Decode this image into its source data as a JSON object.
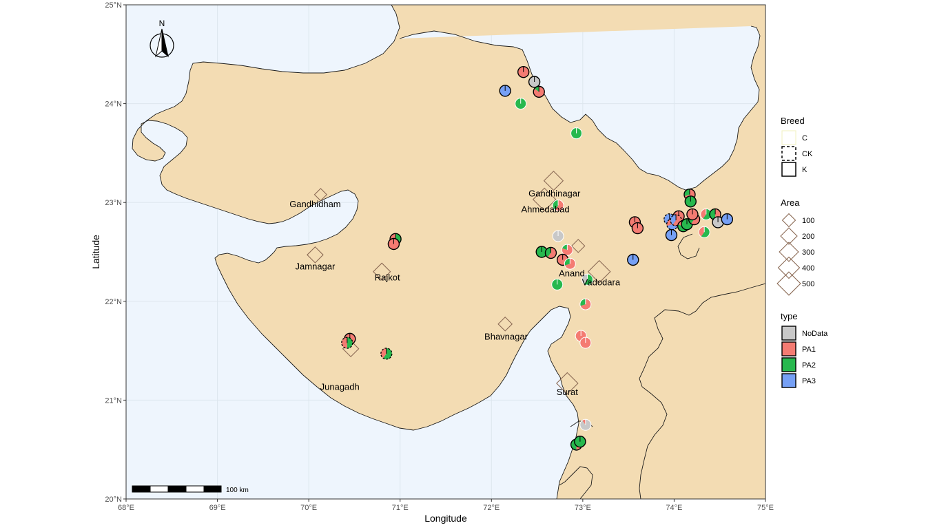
{
  "map": {
    "xlabel": "Longitude",
    "ylabel": "Latitude",
    "xlim": [
      68,
      75
    ],
    "ylim": [
      20,
      25
    ],
    "xticks": [
      {
        "v": 68,
        "label": "68°E"
      },
      {
        "v": 69,
        "label": "69°E"
      },
      {
        "v": 70,
        "label": "70°E"
      },
      {
        "v": 71,
        "label": "71°E"
      },
      {
        "v": 72,
        "label": "72°E"
      },
      {
        "v": 73,
        "label": "73°E"
      },
      {
        "v": 74,
        "label": "74°E"
      },
      {
        "v": 75,
        "label": "75°E"
      }
    ],
    "yticks": [
      {
        "v": 20,
        "label": "20°N"
      },
      {
        "v": 21,
        "label": "21°N"
      },
      {
        "v": 22,
        "label": "22°N"
      },
      {
        "v": 23,
        "label": "23°N"
      },
      {
        "v": 24,
        "label": "24°N"
      },
      {
        "v": 25,
        "label": "25°N"
      }
    ],
    "north_arrow_label": "N",
    "scale_bar_label": "100 km",
    "colors": {
      "sea": "#eef5fd",
      "land": "#f3dcb3",
      "grid": "#dde6ee",
      "NoData": "#c8c8c8",
      "PA1": "#f47b72",
      "PA2": "#27b84e",
      "PA3": "#76a0f5",
      "city_marker": "#8b6a55"
    }
  },
  "cities": [
    {
      "name": "Gandhidham",
      "lon": 70.13,
      "lat": 23.08,
      "area": 80
    },
    {
      "name": "Jamnagar",
      "lon": 70.07,
      "lat": 22.47,
      "area": 180
    },
    {
      "name": "Rajkot",
      "lon": 70.8,
      "lat": 22.3,
      "area": 220
    },
    {
      "name": "Junagadh",
      "lon": 70.46,
      "lat": 21.52,
      "area": 180
    },
    {
      "name": "Bhavnagar",
      "lon": 72.15,
      "lat": 21.77,
      "area": 120
    },
    {
      "name": "Gandhinagar",
      "lon": 72.68,
      "lat": 23.22,
      "area": 300
    },
    {
      "name": "Ahmedabad",
      "lon": 72.58,
      "lat": 23.03,
      "area": 470
    },
    {
      "name": "Anand",
      "lon": 72.95,
      "lat": 22.56,
      "area": 100
    },
    {
      "name": "Vadodara",
      "lon": 73.18,
      "lat": 22.3,
      "area": 440
    },
    {
      "name": "Surat",
      "lon": 72.83,
      "lat": 21.17,
      "area": 400
    }
  ],
  "city_labels": [
    {
      "name": "Gandhidham",
      "lon": 70.07,
      "lat": 22.98
    },
    {
      "name": "Jamnagar",
      "lon": 70.07,
      "lat": 22.35
    },
    {
      "name": "Rajkot",
      "lon": 70.86,
      "lat": 22.24
    },
    {
      "name": "Junagadh",
      "lon": 70.34,
      "lat": 21.13
    },
    {
      "name": "Bhavnagar",
      "lon": 72.16,
      "lat": 21.64
    },
    {
      "name": "Gandhinagar",
      "lon": 72.69,
      "lat": 23.09
    },
    {
      "name": "Ahmedabad",
      "lon": 72.59,
      "lat": 22.93
    },
    {
      "name": "Anand",
      "lon": 72.88,
      "lat": 22.28
    },
    {
      "name": "Vadodara",
      "lon": 73.2,
      "lat": 22.19
    },
    {
      "name": "Surat",
      "lon": 72.83,
      "lat": 21.08
    }
  ],
  "samples": [
    {
      "lon": 72.35,
      "lat": 24.32,
      "breed": "K",
      "pie": {
        "PA1": 1.0
      }
    },
    {
      "lon": 72.47,
      "lat": 24.22,
      "breed": "K",
      "pie": {
        "NoData": 1.0
      }
    },
    {
      "lon": 72.52,
      "lat": 24.12,
      "breed": "K",
      "pie": {
        "PA1": 0.85,
        "PA2": 0.15
      }
    },
    {
      "lon": 72.15,
      "lat": 24.13,
      "breed": "K",
      "pie": {
        "PA3": 1.0
      }
    },
    {
      "lon": 72.32,
      "lat": 24.0,
      "breed": "C",
      "pie": {
        "PA2": 1.0
      }
    },
    {
      "lon": 72.93,
      "lat": 23.7,
      "breed": "C",
      "pie": {
        "PA2": 1.0
      }
    },
    {
      "lon": 72.73,
      "lat": 22.97,
      "breed": "C",
      "pie": {
        "PA1": 0.6,
        "PA2": 0.4
      }
    },
    {
      "lon": 70.95,
      "lat": 22.63,
      "breed": "K",
      "pie": {
        "PA2": 0.7,
        "PA1": 0.3
      }
    },
    {
      "lon": 70.93,
      "lat": 22.58,
      "breed": "K",
      "pie": {
        "PA1": 1.0
      }
    },
    {
      "lon": 72.73,
      "lat": 22.66,
      "breed": "C",
      "pie": {
        "NoData": 1.0
      }
    },
    {
      "lon": 72.55,
      "lat": 22.5,
      "breed": "K",
      "pie": {
        "PA2": 1.0
      }
    },
    {
      "lon": 72.65,
      "lat": 22.49,
      "breed": "K",
      "pie": {
        "PA1": 0.6,
        "PA2": 0.4
      }
    },
    {
      "lon": 72.83,
      "lat": 22.52,
      "breed": "C",
      "pie": {
        "PA1": 0.8,
        "PA2": 0.2
      }
    },
    {
      "lon": 72.78,
      "lat": 22.42,
      "breed": "K",
      "pie": {
        "PA1": 1.0
      }
    },
    {
      "lon": 72.86,
      "lat": 22.38,
      "breed": "C",
      "pie": {
        "PA1": 0.7,
        "PA2": 0.3
      }
    },
    {
      "lon": 72.72,
      "lat": 22.17,
      "breed": "C",
      "pie": {
        "PA2": 1.0
      }
    },
    {
      "lon": 73.05,
      "lat": 22.22,
      "breed": "C",
      "pie": {
        "PA2": 0.6,
        "NoData": 0.4
      }
    },
    {
      "lon": 73.03,
      "lat": 21.97,
      "breed": "C",
      "pie": {
        "PA1": 0.7,
        "PA2": 0.3
      }
    },
    {
      "lon": 73.55,
      "lat": 22.42,
      "breed": "K",
      "pie": {
        "PA3": 1.0
      }
    },
    {
      "lon": 73.57,
      "lat": 22.8,
      "breed": "K",
      "pie": {
        "PA1": 1.0
      }
    },
    {
      "lon": 73.6,
      "lat": 22.74,
      "breed": "K",
      "pie": {
        "PA1": 1.0
      }
    },
    {
      "lon": 72.98,
      "lat": 21.65,
      "breed": "C",
      "pie": {
        "PA1": 1.0
      }
    },
    {
      "lon": 73.03,
      "lat": 21.58,
      "breed": "C",
      "pie": {
        "PA1": 1.0
      }
    },
    {
      "lon": 73.03,
      "lat": 20.75,
      "breed": "C",
      "pie": {
        "NoData": 0.9,
        "PA1": 0.1
      }
    },
    {
      "lon": 72.93,
      "lat": 20.55,
      "breed": "K",
      "pie": {
        "PA1": 0.5,
        "PA2": 0.5
      }
    },
    {
      "lon": 72.97,
      "lat": 20.58,
      "breed": "K",
      "pie": {
        "PA2": 1.0
      }
    },
    {
      "lon": 70.45,
      "lat": 21.62,
      "breed": "K",
      "pie": {
        "PA1": 1.0
      }
    },
    {
      "lon": 70.42,
      "lat": 21.58,
      "breed": "CK",
      "pie": {
        "PA2": 0.5,
        "PA1": 0.5
      }
    },
    {
      "lon": 70.85,
      "lat": 21.47,
      "breed": "CK",
      "pie": {
        "PA2": 0.6,
        "PA1": 0.4
      }
    },
    {
      "lon": 74.17,
      "lat": 23.08,
      "breed": "K",
      "pie": {
        "PA1": 0.7,
        "PA2": 0.3
      }
    },
    {
      "lon": 74.18,
      "lat": 23.01,
      "breed": "K",
      "pie": {
        "PA2": 1.0
      }
    },
    {
      "lon": 73.95,
      "lat": 22.83,
      "breed": "CK",
      "pie": {
        "PA3": 1.0
      }
    },
    {
      "lon": 73.98,
      "lat": 22.78,
      "breed": "CK",
      "pie": {
        "PA3": 0.7,
        "PA1": 0.3
      }
    },
    {
      "lon": 73.97,
      "lat": 22.67,
      "breed": "K",
      "pie": {
        "PA3": 1.0
      }
    },
    {
      "lon": 74.05,
      "lat": 22.86,
      "breed": "K",
      "pie": {
        "PA1": 1.0
      }
    },
    {
      "lon": 74.02,
      "lat": 22.82,
      "breed": "CK",
      "pie": {
        "PA1": 0.6,
        "PA3": 0.4
      }
    },
    {
      "lon": 74.1,
      "lat": 22.76,
      "breed": "K",
      "pie": {
        "PA2": 0.8,
        "PA1": 0.2
      }
    },
    {
      "lon": 74.14,
      "lat": 22.78,
      "breed": "K",
      "pie": {
        "PA2": 1.0
      }
    },
    {
      "lon": 74.22,
      "lat": 22.83,
      "breed": "K",
      "pie": {
        "PA1": 0.6,
        "PA2": 0.4
      }
    },
    {
      "lon": 74.2,
      "lat": 22.88,
      "breed": "K",
      "pie": {
        "PA1": 1.0
      }
    },
    {
      "lon": 74.35,
      "lat": 22.88,
      "breed": "C",
      "pie": {
        "PA2": 0.6,
        "PA1": 0.4
      }
    },
    {
      "lon": 74.45,
      "lat": 22.88,
      "breed": "K",
      "pie": {
        "PA1": 0.5,
        "PA2": 0.5
      }
    },
    {
      "lon": 74.48,
      "lat": 22.8,
      "breed": "K",
      "pie": {
        "NoData": 1.0
      }
    },
    {
      "lon": 74.58,
      "lat": 22.83,
      "breed": "K",
      "pie": {
        "PA3": 1.0
      }
    },
    {
      "lon": 74.33,
      "lat": 22.7,
      "breed": "C",
      "pie": {
        "PA2": 0.6,
        "PA1": 0.4
      }
    }
  ],
  "legend": {
    "breed": {
      "title": "Breed",
      "items": [
        {
          "key": "C",
          "label": "C"
        },
        {
          "key": "CK",
          "label": "CK"
        },
        {
          "key": "K",
          "label": "K"
        }
      ]
    },
    "area": {
      "title": "Area",
      "items": [
        {
          "value": 100,
          "label": "100"
        },
        {
          "value": 200,
          "label": "200"
        },
        {
          "value": 300,
          "label": "300"
        },
        {
          "value": 400,
          "label": "400"
        },
        {
          "value": 500,
          "label": "500"
        }
      ]
    },
    "type": {
      "title": "type",
      "items": [
        {
          "key": "NoData",
          "label": "NoData"
        },
        {
          "key": "PA1",
          "label": "PA1"
        },
        {
          "key": "PA2",
          "label": "PA2"
        },
        {
          "key": "PA3",
          "label": "PA3"
        }
      ]
    }
  }
}
